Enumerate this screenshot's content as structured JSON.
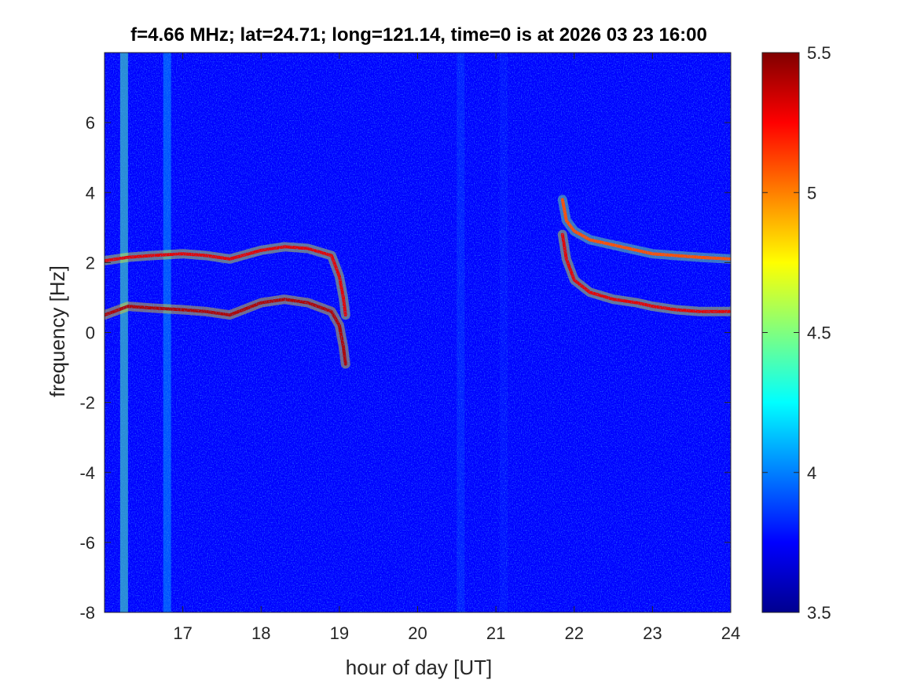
{
  "chart_data": {
    "type": "heatmap",
    "title": "f=4.66 MHz;  lat=24.71; long=121.14, time=0 is at 2026 03 23 16:00",
    "xlabel": "hour of day [UT]",
    "ylabel": "frequency [Hz]",
    "xlim": [
      16,
      24
    ],
    "ylim": [
      -8,
      8
    ],
    "x_ticks": [
      17,
      18,
      19,
      20,
      21,
      22,
      23,
      24
    ],
    "y_ticks": [
      -8,
      -6,
      -4,
      -2,
      0,
      2,
      4,
      6
    ],
    "x_tick_labels": [
      "17",
      "18",
      "19",
      "20",
      "21",
      "22",
      "23",
      "24"
    ],
    "y_tick_labels": [
      "-8",
      "-6",
      "-4",
      "-2",
      "0",
      "2",
      "4",
      "6"
    ],
    "colorbar": {
      "range": [
        3.5,
        5.5
      ],
      "ticks": [
        3.5,
        4,
        4.5,
        5,
        5.5
      ],
      "tick_labels": [
        "3.5",
        "4",
        "4.5",
        "5",
        "5.5"
      ],
      "colormap": "jet"
    },
    "background_level": 3.75,
    "traces": [
      {
        "x": [
          16.0,
          16.3,
          16.6,
          17.0,
          17.3,
          17.6,
          18.0,
          18.3,
          18.6,
          18.9,
          19.0,
          19.05,
          19.08
        ],
        "y": [
          2.05,
          2.15,
          2.2,
          2.25,
          2.2,
          2.1,
          2.35,
          2.45,
          2.4,
          2.2,
          1.6,
          1.0,
          0.5
        ],
        "level": 5.3
      },
      {
        "x": [
          16.0,
          16.3,
          16.6,
          17.0,
          17.3,
          17.6,
          18.0,
          18.3,
          18.6,
          18.9,
          19.0,
          19.05,
          19.08
        ],
        "y": [
          0.5,
          0.75,
          0.7,
          0.65,
          0.6,
          0.5,
          0.85,
          0.95,
          0.85,
          0.6,
          0.2,
          -0.4,
          -0.9
        ],
        "level": 5.4
      },
      {
        "x": [
          21.85,
          21.9,
          22.0,
          22.2,
          22.5,
          22.8,
          23.0,
          23.3,
          23.6,
          24.0
        ],
        "y": [
          3.8,
          3.2,
          2.9,
          2.65,
          2.5,
          2.35,
          2.25,
          2.2,
          2.15,
          2.1
        ],
        "level": 5.1
      },
      {
        "x": [
          21.85,
          21.9,
          22.0,
          22.2,
          22.5,
          22.8,
          23.0,
          23.3,
          23.6,
          24.0
        ],
        "y": [
          2.8,
          2.1,
          1.5,
          1.15,
          0.95,
          0.85,
          0.75,
          0.65,
          0.6,
          0.6
        ],
        "level": 5.3
      }
    ],
    "vertical_bands": [
      {
        "x": 16.25,
        "level": 4.4
      },
      {
        "x": 16.8,
        "level": 4.05
      },
      {
        "x": 20.55,
        "level": 3.85
      },
      {
        "x": 21.1,
        "level": 3.8
      }
    ]
  }
}
